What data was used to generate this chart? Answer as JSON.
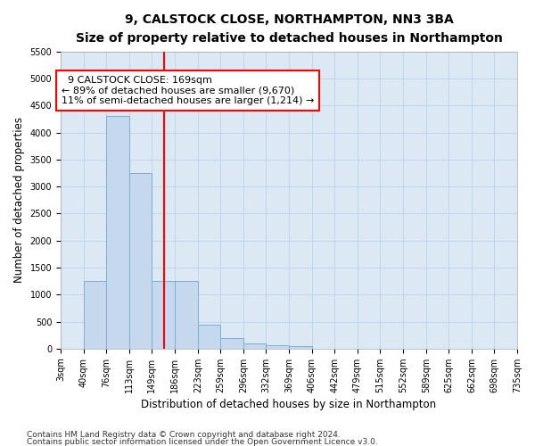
{
  "title": "9, CALSTOCK CLOSE, NORTHAMPTON, NN3 3BA",
  "subtitle": "Size of property relative to detached houses in Northampton",
  "xlabel": "Distribution of detached houses by size in Northampton",
  "ylabel": "Number of detached properties",
  "footnote1": "Contains HM Land Registry data © Crown copyright and database right 2024.",
  "footnote2": "Contains public sector information licensed under the Open Government Licence v3.0.",
  "annotation_line1": "9 CALSTOCK CLOSE: 169sqm",
  "annotation_line2": "← 89% of detached houses are smaller (9,670)",
  "annotation_line3": "11% of semi-detached houses are larger (1,214) →",
  "bar_color": "#c5d8ee",
  "bar_edge_color": "#7aafd4",
  "red_line_x": 169,
  "bin_edges": [
    3,
    40,
    76,
    113,
    149,
    186,
    223,
    259,
    296,
    332,
    369,
    406,
    442,
    479,
    515,
    552,
    589,
    625,
    662,
    698,
    735
  ],
  "bin_counts": [
    0,
    1250,
    4300,
    3250,
    1250,
    1250,
    450,
    200,
    100,
    60,
    50,
    0,
    0,
    0,
    0,
    0,
    0,
    0,
    0,
    0
  ],
  "ylim": [
    0,
    5500
  ],
  "yticks": [
    0,
    500,
    1000,
    1500,
    2000,
    2500,
    3000,
    3500,
    4000,
    4500,
    5000,
    5500
  ],
  "plot_bg": "#dce9f5",
  "grid_color": "#b8cfe8",
  "title_fontsize": 10,
  "subtitle_fontsize": 9,
  "axis_label_fontsize": 8.5,
  "tick_fontsize": 7,
  "footnote_fontsize": 6.5,
  "annotation_fontsize": 8
}
